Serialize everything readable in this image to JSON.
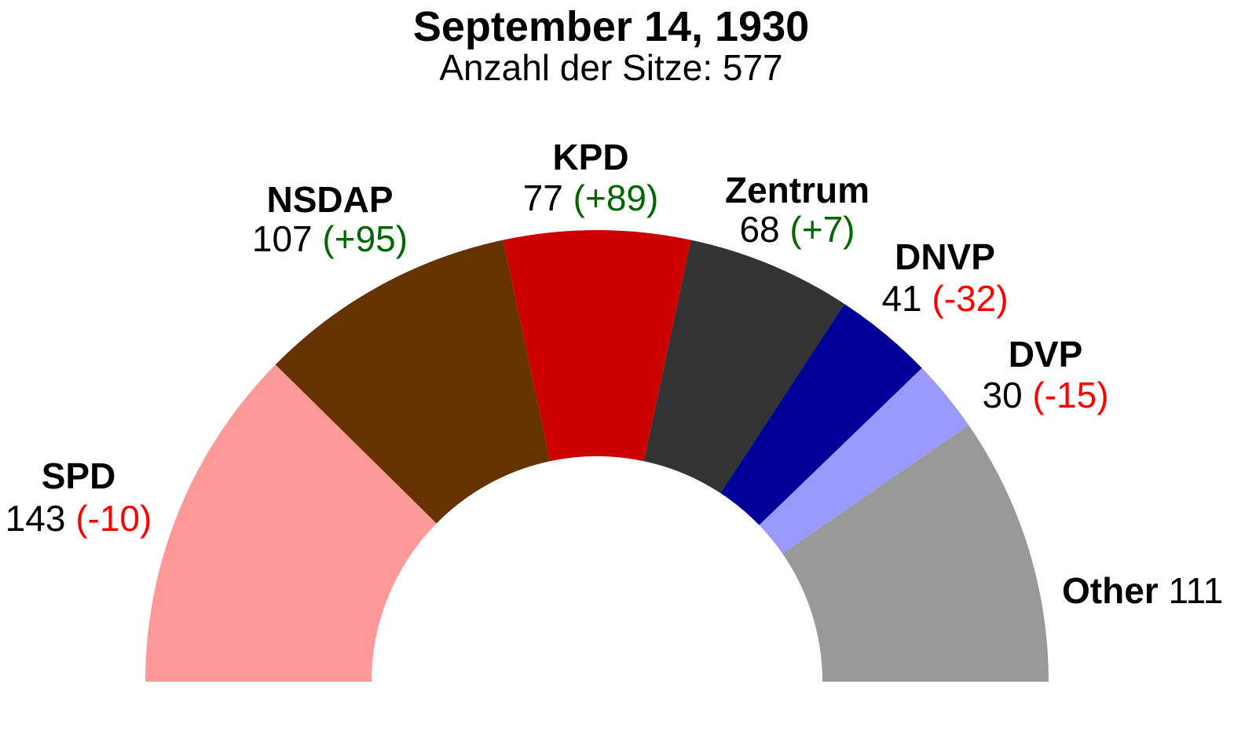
{
  "chart_data": {
    "type": "pie",
    "shape": "semicircle",
    "title": "September 14, 1930",
    "subtitle": "Anzahl der Sitze: 577",
    "parties": [
      {
        "name": "SPD",
        "seats": "143",
        "change": "(-10)",
        "value": 143,
        "color": "#ff9999",
        "change_color": "#ff0000"
      },
      {
        "name": "NSDAP",
        "seats": "107",
        "change": "(+95)",
        "value": 107,
        "color": "#663300",
        "change_color": "#006600"
      },
      {
        "name": "KPD",
        "seats": "77",
        "change": "(+89)",
        "value": 77,
        "color": "#cc0000",
        "change_color": "#006600"
      },
      {
        "name": "Zentrum",
        "seats": "68",
        "change": "(+7)",
        "value": 68,
        "color": "#333333",
        "change_color": "#006600"
      },
      {
        "name": "DNVP",
        "seats": "41",
        "change": "(-32)",
        "value": 41,
        "color": "#000099",
        "change_color": "#ff0000"
      },
      {
        "name": "DVP",
        "seats": "30",
        "change": "(-15)",
        "value": 30,
        "color": "#9999ff",
        "change_color": "#ff0000"
      },
      {
        "name": "Other",
        "seats": "111",
        "change": "",
        "value": 111,
        "color": "#999999",
        "change_color": "#000000"
      }
    ]
  }
}
